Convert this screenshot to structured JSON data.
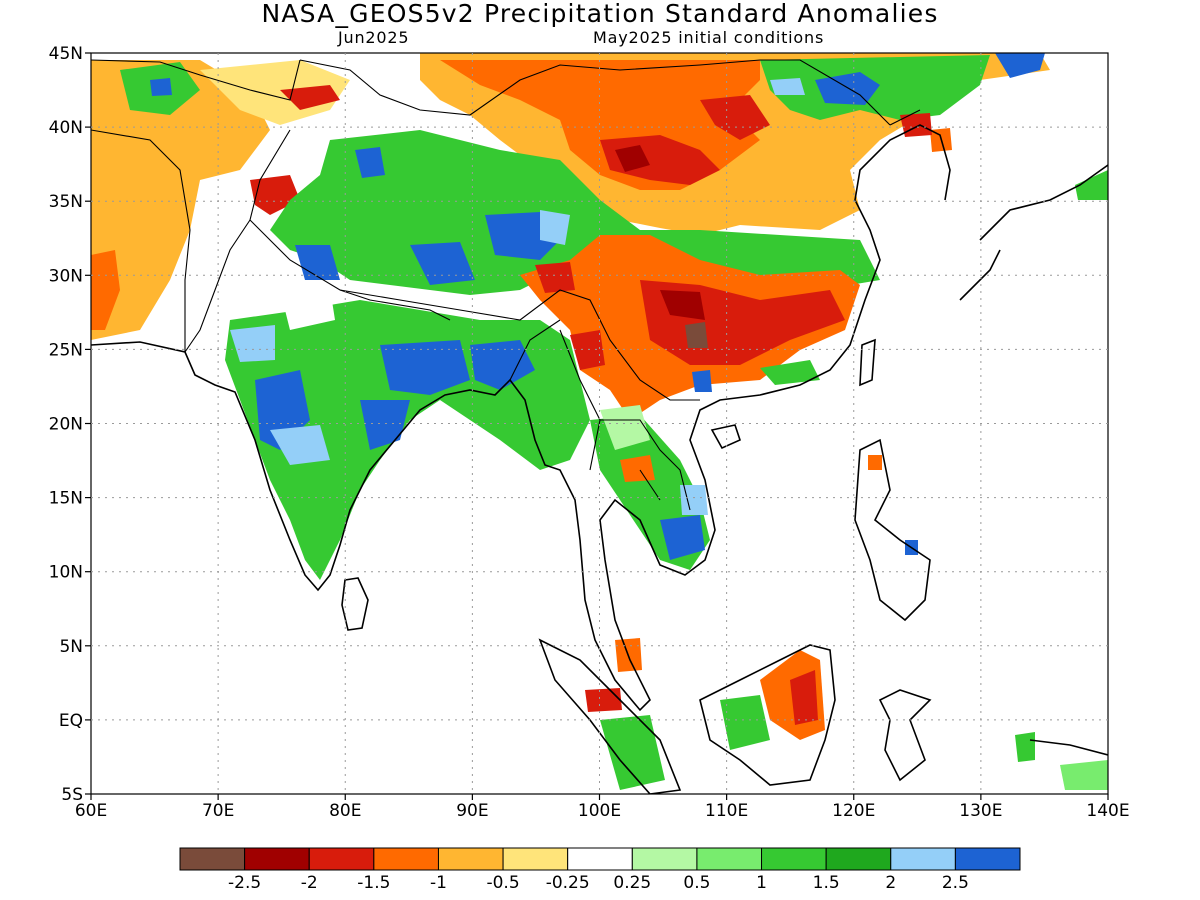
{
  "title": "NASA_GEOS5v2 Precipitation Standard Anomalies",
  "subtitle_left": "Jun2025",
  "subtitle_right": "May2025 initial conditions",
  "axes": {
    "lon_range": [
      60,
      140
    ],
    "lat_range": [
      -5,
      45
    ],
    "lon_ticks": [
      "60E",
      "70E",
      "80E",
      "90E",
      "100E",
      "110E",
      "120E",
      "130E",
      "140E"
    ],
    "lat_ticks": [
      "45N",
      "40N",
      "35N",
      "30N",
      "25N",
      "20N",
      "15N",
      "10N",
      "5N",
      "EQ",
      "5S"
    ],
    "grid": "dotted"
  },
  "colorbar": {
    "colors": [
      "#7a4b3a",
      "#a00000",
      "#d81c0c",
      "#ff6a00",
      "#ffb631",
      "#ffe47a",
      "#ffffff",
      "#b4f8a4",
      "#78ec6e",
      "#36c932",
      "#1fa81e",
      "#94cff8",
      "#1d63d3"
    ],
    "labels": [
      "-2.5",
      "-2",
      "-1.5",
      "-1",
      "-0.5",
      "-0.25",
      "0.25",
      "0.5",
      "1",
      "1.5",
      "2",
      "2.5"
    ]
  },
  "regions": [
    {
      "name": "mongolia-north-china-dry",
      "color": "#ffb631",
      "lon": [
        85,
        125
      ],
      "lat": [
        33,
        45
      ]
    },
    {
      "name": "north-china-core-deficit",
      "color": "#ff6a00",
      "lon": [
        96,
        116
      ],
      "lat": [
        36,
        43
      ]
    },
    {
      "name": "south-china-deficit",
      "color": "#ff6a00",
      "lon": [
        97,
        120
      ],
      "lat": [
        24,
        32
      ]
    },
    {
      "name": "south-china-severe",
      "color": "#d81c0c",
      "lon": [
        100,
        118
      ],
      "lat": [
        25,
        29.5
      ]
    },
    {
      "name": "yunnan-extreme",
      "color": "#7a4b3a",
      "lon": [
        106,
        109
      ],
      "lat": [
        25,
        27
      ]
    },
    {
      "name": "tibet-wet",
      "color": "#36c932",
      "lon": [
        78,
        100
      ],
      "lat": [
        28,
        38
      ]
    },
    {
      "name": "tibet-very-wet",
      "color": "#1d63d3",
      "lon": [
        88,
        96
      ],
      "lat": [
        31,
        35
      ]
    },
    {
      "name": "india-wet",
      "color": "#36c932",
      "lon": [
        72,
        98
      ],
      "lat": [
        10,
        26
      ]
    },
    {
      "name": "india-very-wet",
      "color": "#1d63d3",
      "lon": [
        74,
        92
      ],
      "lat": [
        18,
        25
      ]
    },
    {
      "name": "indochina-wet",
      "color": "#36c932",
      "lon": [
        98,
        110
      ],
      "lat": [
        10,
        22
      ]
    },
    {
      "name": "mongolia-wet",
      "color": "#36c932",
      "lon": [
        118,
        135
      ],
      "lat": [
        38,
        45
      ]
    },
    {
      "name": "iran-afghan-dry",
      "color": "#ffb631",
      "lon": [
        60,
        72
      ],
      "lat": [
        25,
        42
      ]
    },
    {
      "name": "borneo-dry",
      "color": "#d81c0c",
      "lon": [
        115,
        118
      ],
      "lat": [
        0,
        4
      ]
    }
  ]
}
